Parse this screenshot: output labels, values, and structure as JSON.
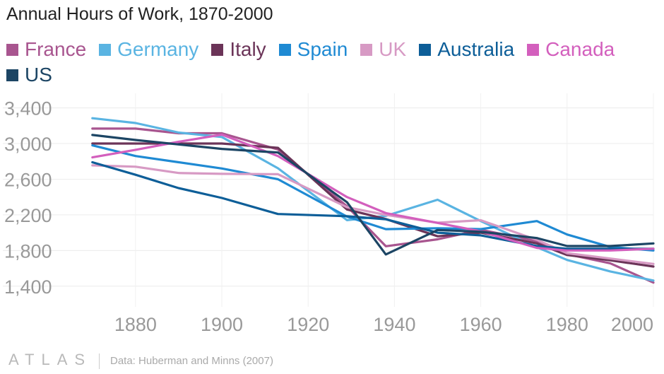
{
  "chart_data": {
    "type": "line",
    "title": "Annual Hours of Work, 1870-2000",
    "xlabel": "",
    "ylabel": "",
    "xlim": [
      1863,
      2000
    ],
    "ylim": [
      1200,
      3500
    ],
    "x_ticks": [
      1880,
      1900,
      1920,
      1940,
      1960,
      1980,
      2000
    ],
    "x_tick_labels": [
      "1880",
      "1900",
      "1920",
      "1940",
      "1960",
      "1980",
      "2000"
    ],
    "y_ticks": [
      1400,
      1800,
      2200,
      2600,
      3000,
      3400
    ],
    "y_tick_labels": [
      "1,400",
      "1,800",
      "2,200",
      "2,600",
      "3,000",
      "3,400"
    ],
    "grid": true,
    "legend_position": "top-left",
    "series": [
      {
        "name": "France",
        "color": "#a8558f",
        "x": [
          1870,
          1880,
          1890,
          1900,
          1913,
          1929,
          1938,
          1950,
          1960,
          1973,
          1980,
          1990,
          2000
        ],
        "y": [
          3168,
          3168,
          3115,
          3115,
          2933,
          2297,
          1848,
          1926,
          2033,
          1904,
          1759,
          1657,
          1440
        ]
      },
      {
        "name": "Germany",
        "color": "#5ab4e2",
        "x": [
          1870,
          1880,
          1890,
          1900,
          1913,
          1929,
          1938,
          1950,
          1960,
          1973,
          1980,
          1990,
          2000
        ],
        "y": [
          3284,
          3230,
          3123,
          3073,
          2723,
          2141,
          2188,
          2370,
          2130,
          1837,
          1694,
          1566,
          1463
        ]
      },
      {
        "name": "Italy",
        "color": "#6b3458",
        "x": [
          1870,
          1880,
          1890,
          1900,
          1913,
          1929,
          1938,
          1950,
          1960,
          1973,
          1980,
          1990,
          2000
        ],
        "y": [
          3000,
          3000,
          3000,
          3000,
          2952,
          2260,
          2153,
          1960,
          2000,
          1880,
          1750,
          1690,
          1620
        ]
      },
      {
        "name": "Spain",
        "color": "#1f8ad3",
        "x": [
          1870,
          1880,
          1890,
          1900,
          1913,
          1929,
          1938,
          1950,
          1960,
          1973,
          1980,
          1990,
          2000
        ],
        "y": [
          2980,
          2860,
          2790,
          2720,
          2600,
          2180,
          2040,
          2050,
          2040,
          2130,
          1980,
          1840,
          1800
        ]
      },
      {
        "name": "UK",
        "color": "#d79ac4",
        "x": [
          1870,
          1880,
          1890,
          1900,
          1913,
          1929,
          1938,
          1950,
          1960,
          1973,
          1980,
          1990,
          2000
        ],
        "y": [
          2755,
          2740,
          2670,
          2660,
          2656,
          2286,
          2200,
          2112,
          2140,
          1920,
          1770,
          1710,
          1650
        ]
      },
      {
        "name": "Australia",
        "color": "#0d5e98",
        "x": [
          1870,
          1880,
          1890,
          1900,
          1913,
          1929,
          1938,
          1950,
          1960,
          1973,
          1980,
          1990,
          2000
        ],
        "y": [
          2790,
          2650,
          2500,
          2390,
          2210,
          2185,
          2150,
          2000,
          1970,
          1850,
          1820,
          1820,
          1820
        ]
      },
      {
        "name": "Canada",
        "color": "#d35fbd",
        "x": [
          1870,
          1880,
          1890,
          1900,
          1913,
          1929,
          1938,
          1950,
          1960,
          1973,
          1980,
          1990,
          2000
        ],
        "y": [
          2845,
          2930,
          3020,
          3100,
          2860,
          2400,
          2220,
          2110,
          2015,
          1830,
          1800,
          1800,
          1820
        ]
      },
      {
        "name": "US",
        "color": "#1c4564",
        "x": [
          1870,
          1880,
          1890,
          1900,
          1913,
          1929,
          1938,
          1950,
          1960,
          1973,
          1980,
          1990,
          2000
        ],
        "y": [
          3096,
          3040,
          2990,
          2940,
          2900,
          2342,
          1756,
          2030,
          2010,
          1940,
          1850,
          1850,
          1880
        ]
      }
    ]
  },
  "footer": {
    "brand": "ATLAS",
    "source": "Data: Huberman and Minns (2007)"
  }
}
